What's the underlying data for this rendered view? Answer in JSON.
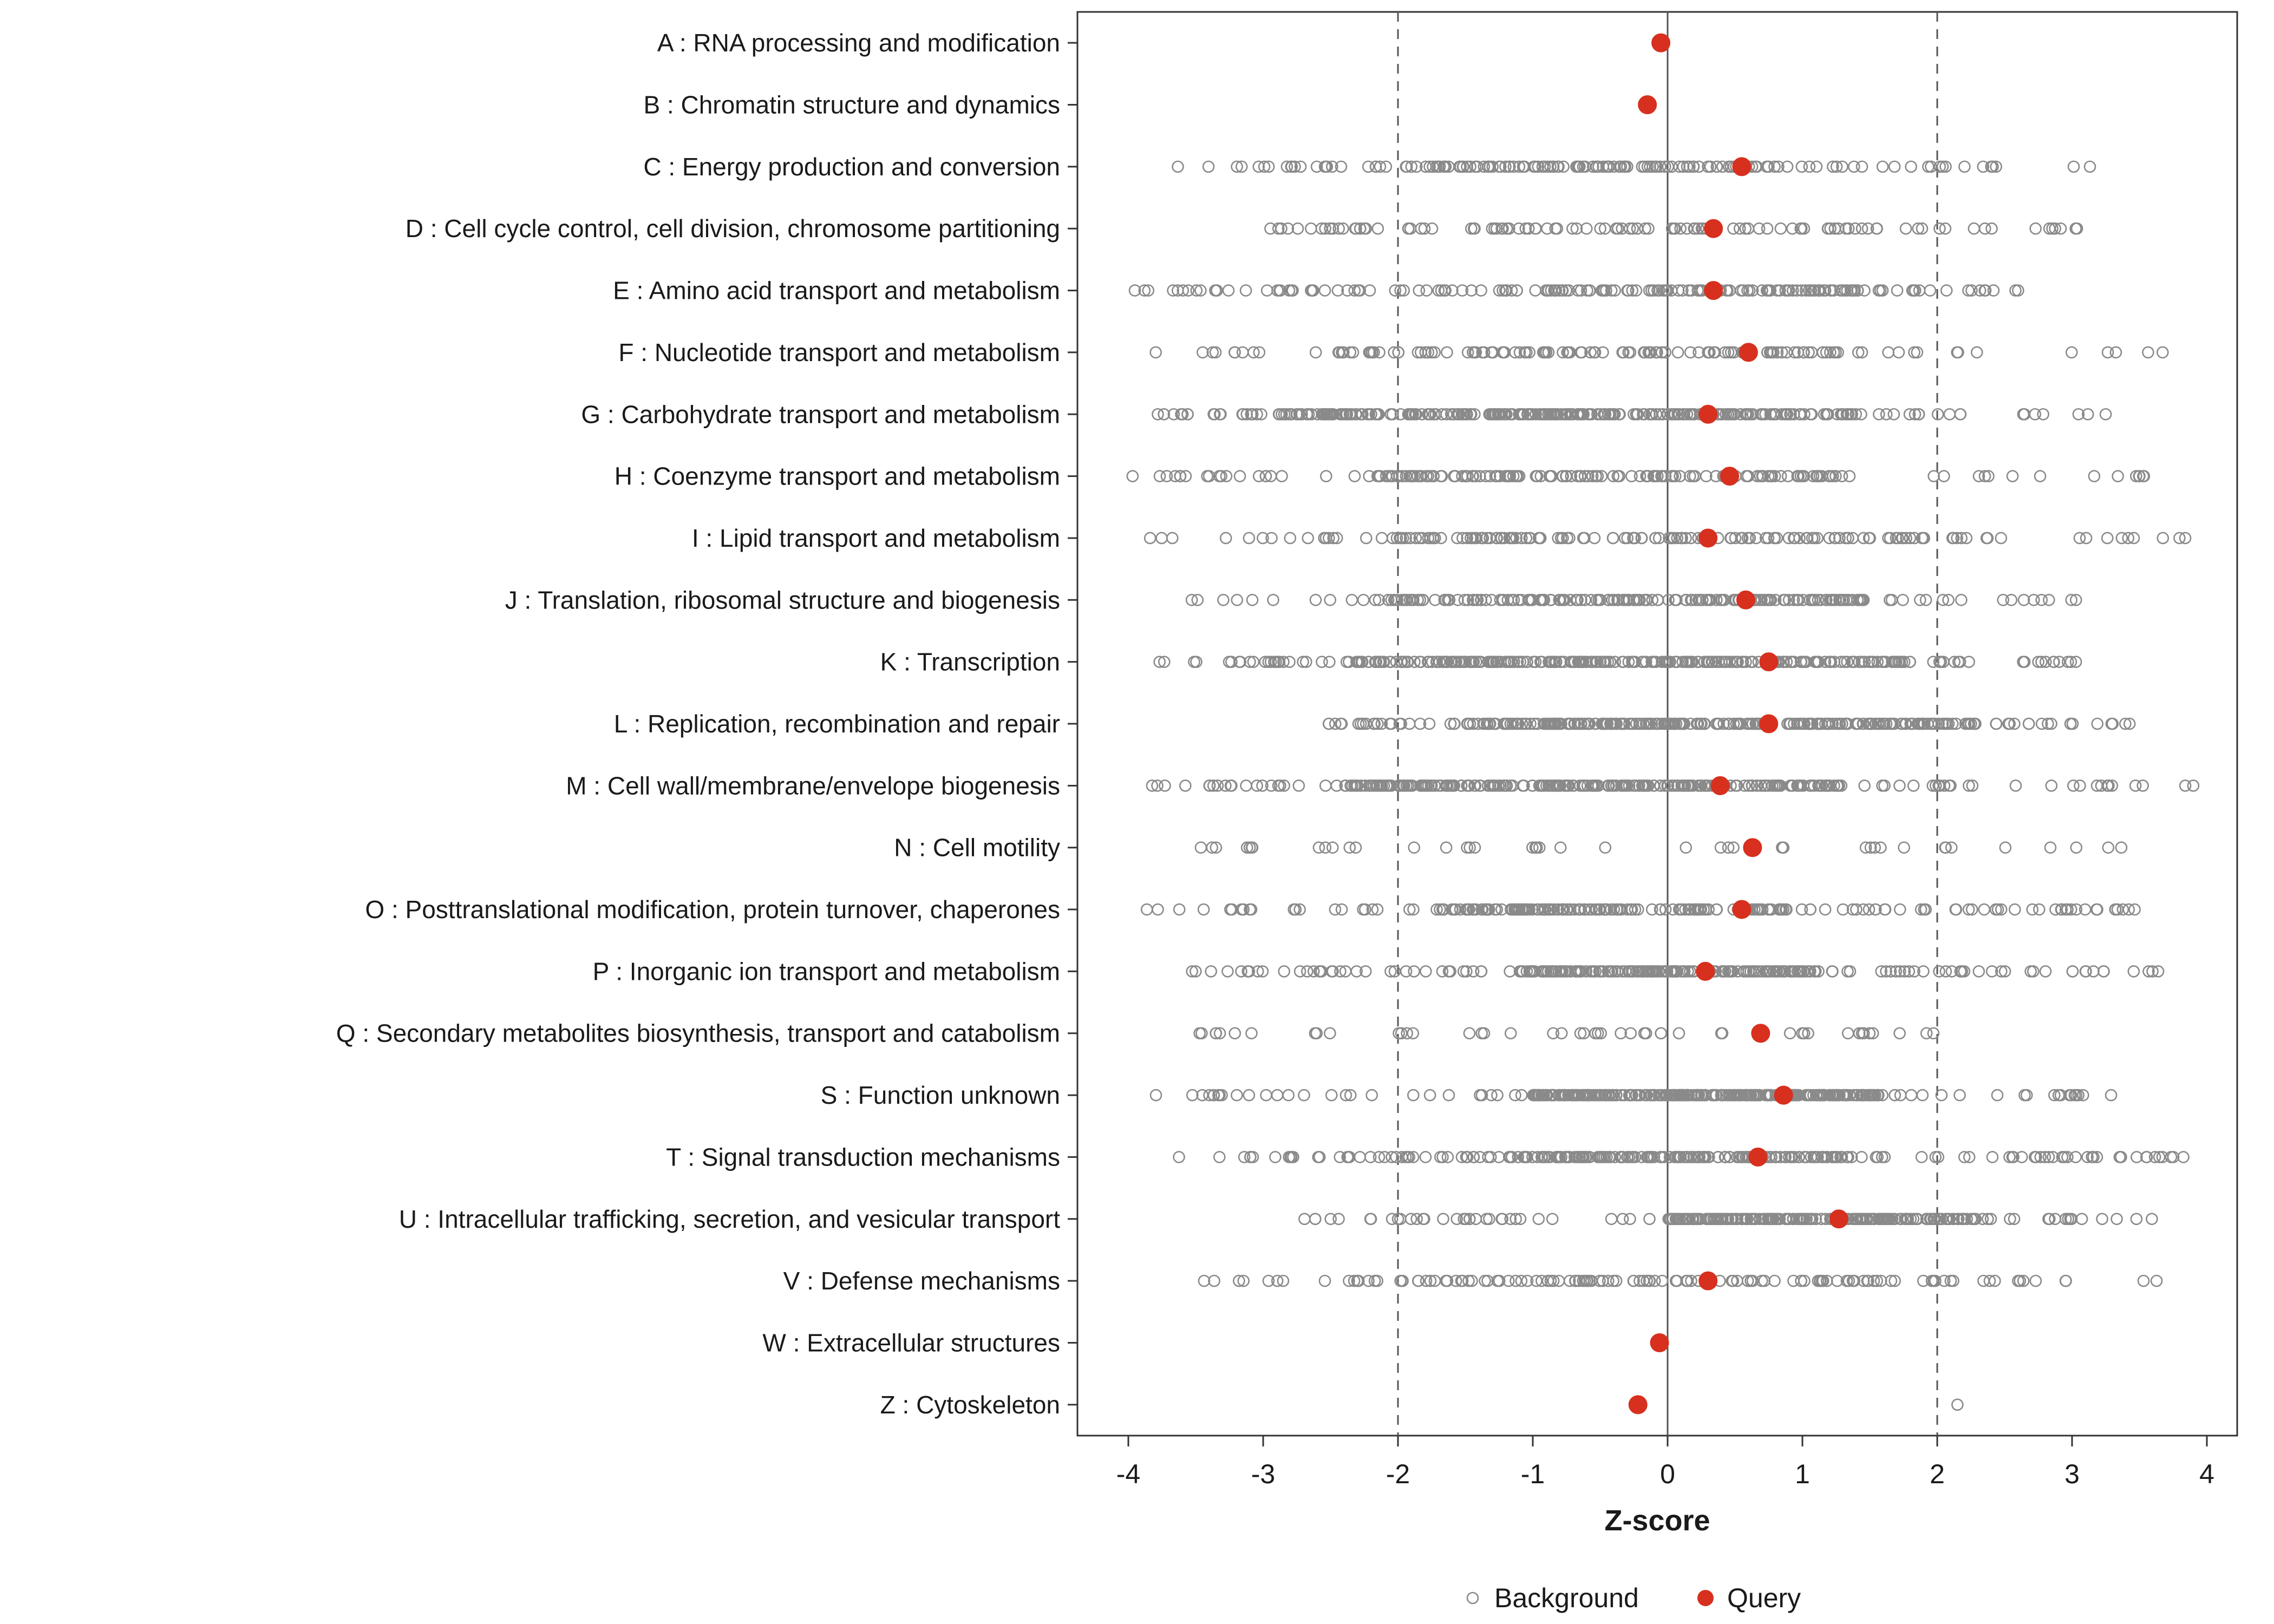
{
  "chart_data": {
    "type": "scatter",
    "title": "",
    "xlabel": "Z-score",
    "xlim": [
      -4.38,
      4.22
    ],
    "x_ticks": [
      -4,
      -3,
      -2,
      -1,
      0,
      1,
      2,
      3,
      4
    ],
    "grid": false,
    "reference_lines": {
      "solid_at": [
        0
      ],
      "dashed_at": [
        -2,
        2
      ]
    },
    "legend": {
      "position": "bottom",
      "items": [
        {
          "label": "Background",
          "marker": "open-circle"
        },
        {
          "label": "Query",
          "marker": "filled-circle"
        }
      ]
    },
    "colors": {
      "background_stroke": "#8a8a8a",
      "query_fill": "#D7301F",
      "axis_text": "#1a1a1a",
      "panel_border": "#333333",
      "zero_line": "#555555",
      "dashed_line": "#555555"
    },
    "categories": [
      {
        "label": "A : RNA processing and modification",
        "query": -0.05,
        "background": {
          "n": 0,
          "min": 0,
          "max": 0,
          "core_min": 0,
          "core_max": 0,
          "core_frac": 0
        }
      },
      {
        "label": "B : Chromatin structure and dynamics",
        "query": -0.15,
        "background": {
          "n": 0,
          "min": 0,
          "max": 0,
          "core_min": 0,
          "core_max": 0,
          "core_frac": 0
        }
      },
      {
        "label": "C : Energy production and conversion",
        "query": 0.55,
        "background": {
          "n": 160,
          "min": -3.9,
          "max": 3.3,
          "core_min": -1.95,
          "core_max": 1.3,
          "core_frac": 0.72
        }
      },
      {
        "label": "D : Cell cycle control, cell division, chromosome partitioning",
        "query": 0.34,
        "background": {
          "n": 110,
          "min": -3.0,
          "max": 3.45,
          "core_min": -2.9,
          "core_max": 1.6,
          "core_frac": 0.85
        }
      },
      {
        "label": "E : Amino acid transport and metabolism",
        "query": 0.34,
        "background": {
          "n": 170,
          "min": -4.0,
          "max": 2.6,
          "core_min": -1.3,
          "core_max": 1.5,
          "core_frac": 0.65
        }
      },
      {
        "label": "F : Nucleotide transport and metabolism",
        "query": 0.6,
        "background": {
          "n": 130,
          "min": -3.95,
          "max": 3.8,
          "core_min": -2.5,
          "core_max": 1.4,
          "core_frac": 0.8
        }
      },
      {
        "label": "G : Carbohydrate transport and metabolism",
        "query": 0.3,
        "background": {
          "n": 320,
          "min": -3.8,
          "max": 3.3,
          "core_min": -2.9,
          "core_max": 1.4,
          "core_frac": 0.9
        }
      },
      {
        "label": "H : Coenzyme transport and metabolism",
        "query": 0.46,
        "background": {
          "n": 170,
          "min": -4.0,
          "max": 3.9,
          "core_min": -2.2,
          "core_max": 1.3,
          "core_frac": 0.75
        }
      },
      {
        "label": "I : Lipid transport and metabolism",
        "query": 0.3,
        "background": {
          "n": 160,
          "min": -4.0,
          "max": 3.85,
          "core_min": -2.1,
          "core_max": 1.9,
          "core_frac": 0.8
        }
      },
      {
        "label": "J : Translation, ribosomal structure and biogenesis",
        "query": 0.58,
        "background": {
          "n": 220,
          "min": -3.7,
          "max": 3.05,
          "core_min": -2.1,
          "core_max": 1.5,
          "core_frac": 0.85
        }
      },
      {
        "label": "K : Transcription",
        "query": 0.75,
        "background": {
          "n": 300,
          "min": -3.85,
          "max": 3.05,
          "core_min": -2.4,
          "core_max": 1.8,
          "core_frac": 0.85
        }
      },
      {
        "label": "L : Replication, recombination and repair",
        "query": 0.75,
        "background": {
          "n": 300,
          "min": -2.6,
          "max": 3.5,
          "core_min": -1.5,
          "core_max": 2.1,
          "core_frac": 0.85
        }
      },
      {
        "label": "M : Cell wall/membrane/envelope biogenesis",
        "query": 0.39,
        "background": {
          "n": 300,
          "min": -3.95,
          "max": 3.95,
          "core_min": -2.4,
          "core_max": 1.3,
          "core_frac": 0.85
        }
      },
      {
        "label": "N : Cell motility",
        "query": 0.63,
        "background": {
          "n": 42,
          "min": -3.55,
          "max": 3.5,
          "core_min": -3.55,
          "core_max": 3.5,
          "core_frac": 1.0
        }
      },
      {
        "label": "O : Posttranslational modification, protein turnover, chaperones",
        "query": 0.55,
        "background": {
          "n": 220,
          "min": -3.9,
          "max": 3.6,
          "core_min": -1.6,
          "core_max": 0.9,
          "core_frac": 0.7
        }
      },
      {
        "label": "P : Inorganic ion transport and metabolism",
        "query": 0.28,
        "background": {
          "n": 260,
          "min": -3.6,
          "max": 3.65,
          "core_min": -1.1,
          "core_max": 1.1,
          "core_frac": 0.7
        }
      },
      {
        "label": "Q : Secondary metabolites biosynthesis, transport and catabolism",
        "query": 0.69,
        "background": {
          "n": 48,
          "min": -3.6,
          "max": 2.0,
          "core_min": -3.3,
          "core_max": 1.6,
          "core_frac": 0.9
        }
      },
      {
        "label": "S : Function unknown",
        "query": 0.86,
        "background": {
          "n": 340,
          "min": -3.8,
          "max": 3.55,
          "core_min": -1.0,
          "core_max": 1.6,
          "core_frac": 0.8
        }
      },
      {
        "label": "T : Signal transduction mechanisms",
        "query": 0.67,
        "background": {
          "n": 260,
          "min": -3.7,
          "max": 3.9,
          "core_min": -1.2,
          "core_max": 1.3,
          "core_frac": 0.7
        }
      },
      {
        "label": "U : Intracellular trafficking, secretion, and vesicular transport",
        "query": 1.27,
        "background": {
          "n": 260,
          "min": -2.7,
          "max": 3.6,
          "core_min": 0.0,
          "core_max": 2.4,
          "core_frac": 0.8
        }
      },
      {
        "label": "V : Defense mechanisms",
        "query": 0.3,
        "background": {
          "n": 130,
          "min": -3.5,
          "max": 3.8,
          "core_min": -2.0,
          "core_max": 1.7,
          "core_frac": 0.8
        }
      },
      {
        "label": "W : Extracellular structures",
        "query": -0.06,
        "background": {
          "n": 0,
          "min": 0,
          "max": 0,
          "core_min": 0,
          "core_max": 0,
          "core_frac": 0
        }
      },
      {
        "label": "Z : Cytoskeleton",
        "query": -0.22,
        "background": {
          "n": 0,
          "min": 0,
          "max": 0,
          "core_min": 0,
          "core_max": 0,
          "core_frac": 0
        },
        "background_points": [
          2.15
        ]
      }
    ]
  }
}
